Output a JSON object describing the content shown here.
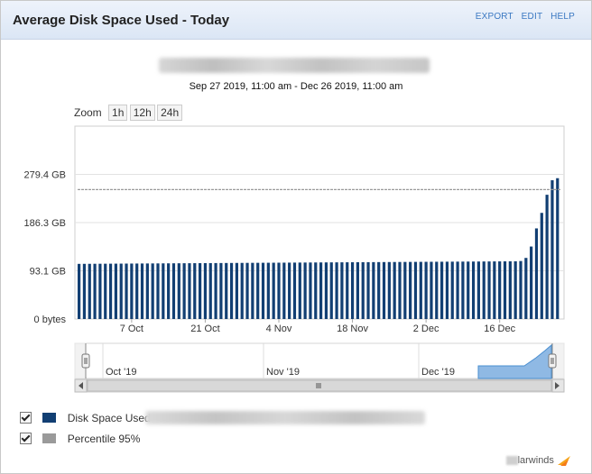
{
  "header": {
    "title": "Average Disk Space Used - Today"
  },
  "actions": {
    "export": "EXPORT",
    "edit": "EDIT",
    "help": "HELP"
  },
  "date_range": "Sep 27 2019, 11:00 am - Dec 26 2019, 11:00 am",
  "zoom": {
    "label": "Zoom",
    "buttons": [
      "1h",
      "12h",
      "24h"
    ]
  },
  "chart_data": {
    "type": "bar",
    "y_ticks": [
      "0 bytes",
      "93.1 GB",
      "186.3 GB",
      "279.4 GB"
    ],
    "y_tick_values": [
      0,
      93.1,
      186.3,
      279.4
    ],
    "ylim": [
      0,
      372.5
    ],
    "x_ticks": [
      "7 Oct",
      "21 Oct",
      "4 Nov",
      "18 Nov",
      "2 Dec",
      "16 Dec"
    ],
    "x_tick_days": [
      10,
      24,
      38,
      52,
      66,
      80
    ],
    "series": [
      {
        "name": "Disk Space Used",
        "color": "#123f73",
        "baseline_days": 84,
        "baseline_start": 106.5,
        "baseline_end": 111.5,
        "tail_values": [
          112,
          118,
          140,
          175,
          205,
          240,
          268,
          272
        ]
      },
      {
        "name": "Percentile 95%",
        "color": "#9a9a9a",
        "value": 250
      }
    ],
    "navigator": {
      "x_ticks": [
        "Oct '19",
        "Nov '19",
        "Dec '19"
      ]
    }
  },
  "legend": {
    "items": [
      "Disk Space Used",
      "Percentile 95%"
    ]
  },
  "brand": {
    "text": "larwinds"
  }
}
